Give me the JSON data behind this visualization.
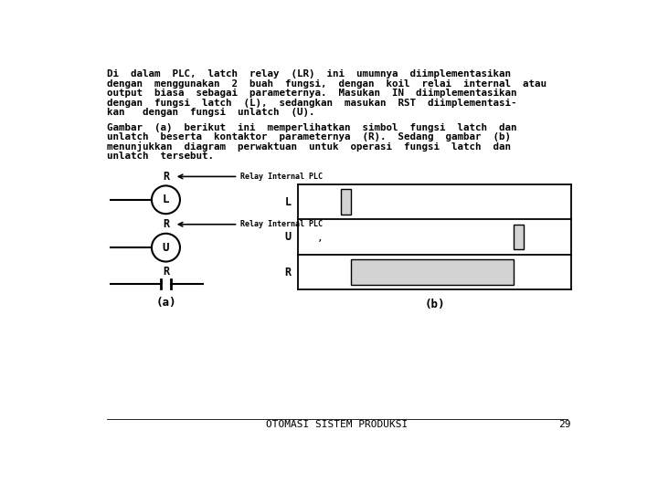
{
  "bg_color": "#ffffff",
  "text_color": "#000000",
  "para1_lines": [
    "Di  dalam  PLC,  latch  relay  (LR)  ini  umumnya  diimplementasikan",
    "dengan  menggunakan  2  buah  fungsi,  dengan  koil  relai  internal  atau",
    "output  biasa  sebagai  parameternya.  Masukan  IN  diimplementasikan",
    "dengan  fungsi  latch  (L),  sedangkan  masukan  RST  diimplementasi-",
    "kan   dengan  fungsi  unlatch  (U)."
  ],
  "para2_lines": [
    "Gambar  (a)  berikut  ini  memperlihatkan  simbol  fungsi  latch  dan",
    "unlatch  beserta  kontaktor  parameternya  (R).  Sedang  gambar  (b)",
    "menunjukkan  diagram  perwaktuan  untuk  operasi  fungsi  latch  dan",
    "unlatch  tersebut."
  ],
  "footer_text": "OTOMASI SISTEM PRODUKSI",
  "page_number": "29",
  "label_a": "(a)",
  "label_b": "(b)",
  "relay_internal_plc": "Relay Internal PLC",
  "font_size_body": 7.8,
  "font_size_footer": 8.0,
  "font_size_diagram": 8.5,
  "font_size_relay": 6.0
}
